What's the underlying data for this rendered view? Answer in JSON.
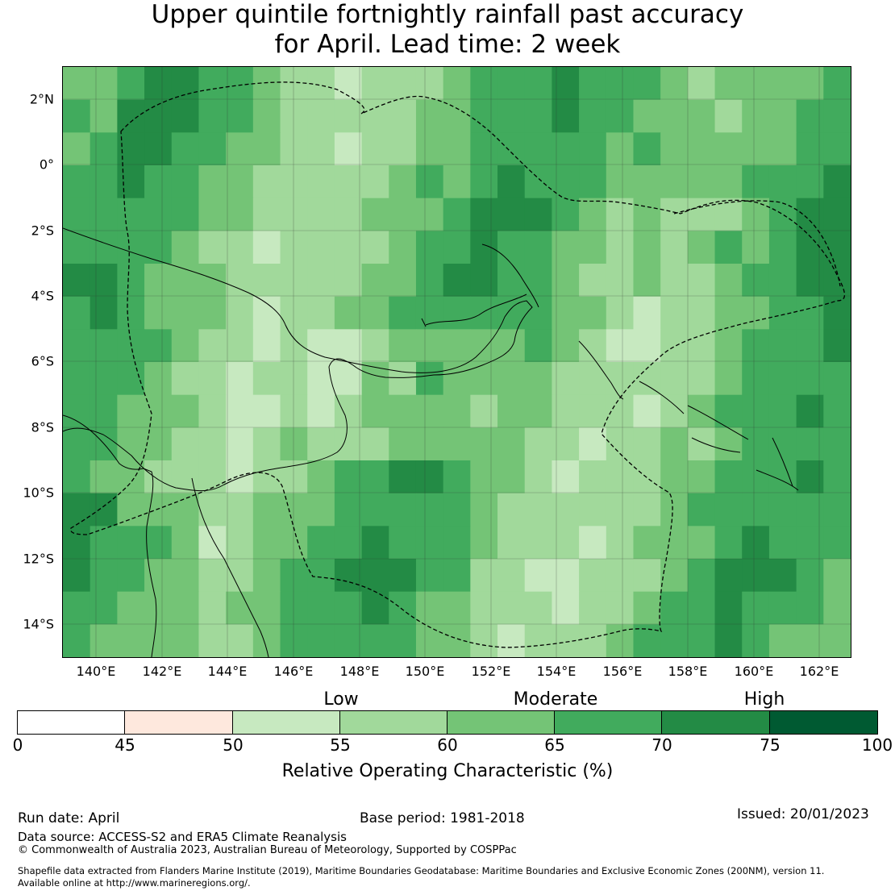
{
  "title": {
    "line1": "Upper quintile fortnightly rainfall past accuracy",
    "line2": "for April. Lead time: 2 week"
  },
  "map": {
    "lon_labels": [
      "140°E",
      "142°E",
      "144°E",
      "146°E",
      "148°E",
      "150°E",
      "152°E",
      "154°E",
      "156°E",
      "158°E",
      "160°E",
      "162°E"
    ],
    "lat_labels": [
      "2°N",
      "0°",
      "2°S",
      "4°S",
      "6°S",
      "8°S",
      "10°S",
      "12°S",
      "14°S"
    ]
  },
  "colorbar": {
    "categories": [
      "Low",
      "Moderate",
      "High"
    ],
    "ticks": [
      "0",
      "45",
      "50",
      "55",
      "60",
      "65",
      "70",
      "75",
      "100"
    ],
    "colors": [
      "#ffffff",
      "#fee8dd",
      "#c7e9c0",
      "#a1d99b",
      "#74c476",
      "#41ab5d",
      "#238b45",
      "#005a32"
    ],
    "label": "Relative Operating Characteristic (%)"
  },
  "footer": {
    "run_date": "Run date: April",
    "base_period": "Base period: 1981-2018",
    "issued": "Issued: 20/01/2023",
    "data_source": "Data source: ACCESS-S2 and ERA5 Climate Reanalysis",
    "copyright": "© Commonwealth of Australia 2023, Australian Bureau of Meteorology, Supported by COSPPac",
    "shapefile_line1": "Shapefile data extracted from Flanders Marine Institute (2019), Maritime Boundaries Geodatabase: Maritime Boundaries and Exclusive Economic Zones (200NM), version 11.",
    "shapefile_line2": "Available online at http://www.marineregions.org/."
  }
}
